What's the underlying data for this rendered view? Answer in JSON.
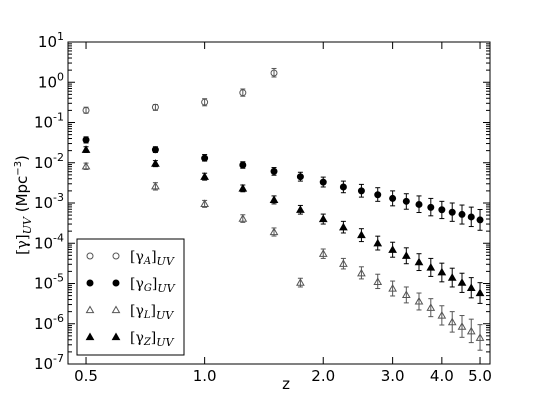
{
  "chart_data": {
    "type": "scatter",
    "xlabel": "z",
    "ylabel": "[γ]UV (Mpc⁻³)",
    "xscale": "log",
    "yscale": "log",
    "xlim": [
      0.45,
      5.3
    ],
    "ylim": [
      1e-07,
      10
    ],
    "x_ticks": [
      {
        "value": 0.5,
        "label": "0.5"
      },
      {
        "value": 1.0,
        "label": "1.0"
      },
      {
        "value": 2.0,
        "label": "2.0"
      },
      {
        "value": 3.0,
        "label": "3.0"
      },
      {
        "value": 4.0,
        "label": "4.0"
      },
      {
        "value": 5.0,
        "label": "5.0"
      }
    ],
    "y_ticks": [
      {
        "value": 1e-07,
        "base": "10",
        "exp": "-7"
      },
      {
        "value": 1e-06,
        "base": "10",
        "exp": "-6"
      },
      {
        "value": 1e-05,
        "base": "10",
        "exp": "-5"
      },
      {
        "value": 0.0001,
        "base": "10",
        "exp": "-4"
      },
      {
        "value": 0.001,
        "base": "10",
        "exp": "-3"
      },
      {
        "value": 0.01,
        "base": "10",
        "exp": "-2"
      },
      {
        "value": 0.1,
        "base": "10",
        "exp": "-1"
      },
      {
        "value": 1,
        "base": "10",
        "exp": "0"
      },
      {
        "value": 10,
        "base": "10",
        "exp": "1"
      }
    ],
    "legend_position": "bottom-left",
    "series": [
      {
        "name": "[γA]UV",
        "name_main": "[γ",
        "name_sub_inner": "A",
        "name_sub_outer": "UV",
        "marker": "circle-open",
        "color": "#555555",
        "points": [
          {
            "x": 0.5,
            "y": 0.2,
            "lo": 0.17,
            "hi": 0.24
          },
          {
            "x": 0.75,
            "y": 0.24,
            "lo": 0.2,
            "hi": 0.28
          },
          {
            "x": 1.0,
            "y": 0.32,
            "lo": 0.26,
            "hi": 0.39
          },
          {
            "x": 1.25,
            "y": 0.55,
            "lo": 0.45,
            "hi": 0.68
          },
          {
            "x": 1.5,
            "y": 1.7,
            "lo": 1.35,
            "hi": 2.2
          }
        ]
      },
      {
        "name": "[γG]UV",
        "name_main": "[γ",
        "name_sub_inner": "G",
        "name_sub_outer": "UV",
        "marker": "circle-filled",
        "color": "#000000",
        "points": [
          {
            "x": 0.5,
            "y": 0.037,
            "lo": 0.031,
            "hi": 0.044
          },
          {
            "x": 0.75,
            "y": 0.021,
            "lo": 0.018,
            "hi": 0.025
          },
          {
            "x": 1.0,
            "y": 0.013,
            "lo": 0.011,
            "hi": 0.016
          },
          {
            "x": 1.25,
            "y": 0.0088,
            "lo": 0.0073,
            "hi": 0.0106
          },
          {
            "x": 1.5,
            "y": 0.0061,
            "lo": 0.0049,
            "hi": 0.0076
          },
          {
            "x": 1.75,
            "y": 0.0045,
            "lo": 0.0035,
            "hi": 0.0058
          },
          {
            "x": 2.0,
            "y": 0.0033,
            "lo": 0.0025,
            "hi": 0.0044
          },
          {
            "x": 2.25,
            "y": 0.0025,
            "lo": 0.0018,
            "hi": 0.0035
          },
          {
            "x": 2.5,
            "y": 0.002,
            "lo": 0.0014,
            "hi": 0.0029
          },
          {
            "x": 2.75,
            "y": 0.0016,
            "lo": 0.0011,
            "hi": 0.0024
          },
          {
            "x": 3.0,
            "y": 0.0013,
            "lo": 0.00085,
            "hi": 0.002
          },
          {
            "x": 3.25,
            "y": 0.0011,
            "lo": 0.0007,
            "hi": 0.0017
          },
          {
            "x": 3.5,
            "y": 0.00092,
            "lo": 0.00058,
            "hi": 0.0015
          },
          {
            "x": 3.75,
            "y": 0.00078,
            "lo": 0.00048,
            "hi": 0.0013
          },
          {
            "x": 4.0,
            "y": 0.00068,
            "lo": 0.00041,
            "hi": 0.0011
          },
          {
            "x": 4.25,
            "y": 0.00059,
            "lo": 0.00035,
            "hi": 0.001
          },
          {
            "x": 4.5,
            "y": 0.00052,
            "lo": 0.0003,
            "hi": 0.00089
          },
          {
            "x": 4.75,
            "y": 0.00045,
            "lo": 0.00026,
            "hi": 0.00079
          },
          {
            "x": 5.0,
            "y": 0.00038,
            "lo": 0.00021,
            "hi": 0.00069
          }
        ]
      },
      {
        "name": "[γL]UV",
        "name_main": "[γ",
        "name_sub_inner": "L",
        "name_sub_outer": "UV",
        "marker": "triangle-open",
        "color": "#555555",
        "points": [
          {
            "x": 0.5,
            "y": 0.0082,
            "lo": 0.0068,
            "hi": 0.0098
          },
          {
            "x": 0.75,
            "y": 0.0026,
            "lo": 0.0021,
            "hi": 0.0032
          },
          {
            "x": 1.0,
            "y": 0.00095,
            "lo": 0.00078,
            "hi": 0.00116
          },
          {
            "x": 1.25,
            "y": 0.00041,
            "lo": 0.00033,
            "hi": 0.00051
          },
          {
            "x": 1.5,
            "y": 0.00019,
            "lo": 0.000151,
            "hi": 0.00024
          },
          {
            "x": 1.75,
            "y": 1.05e-05,
            "lo": 8.2e-06,
            "hi": 1.35e-05
          },
          {
            "x": 2.0,
            "y": 5.5e-05,
            "lo": 4.2e-05,
            "hi": 7.2e-05
          },
          {
            "x": 2.25,
            "y": 3.1e-05,
            "lo": 2.3e-05,
            "hi": 4.2e-05
          },
          {
            "x": 2.5,
            "y": 1.8e-05,
            "lo": 1.3e-05,
            "hi": 2.6e-05
          },
          {
            "x": 2.75,
            "y": 1.1e-05,
            "lo": 7.5e-06,
            "hi": 1.7e-05
          },
          {
            "x": 3.0,
            "y": 7.5e-06,
            "lo": 4.9e-06,
            "hi": 1.15e-05
          },
          {
            "x": 3.25,
            "y": 5.2e-06,
            "lo": 3.3e-06,
            "hi": 8.2e-06
          },
          {
            "x": 3.5,
            "y": 3.6e-06,
            "lo": 2.2e-06,
            "hi": 5.8e-06
          },
          {
            "x": 3.75,
            "y": 2.5e-06,
            "lo": 1.5e-06,
            "hi": 4.2e-06
          },
          {
            "x": 4.0,
            "y": 1.6e-06,
            "lo": 9.3e-07,
            "hi": 2.8e-06
          },
          {
            "x": 4.25,
            "y": 1.1e-06,
            "lo": 6.2e-07,
            "hi": 2e-06
          },
          {
            "x": 4.5,
            "y": 8.5e-07,
            "lo": 4.6e-07,
            "hi": 1.6e-06
          },
          {
            "x": 4.75,
            "y": 6.5e-07,
            "lo": 3.4e-07,
            "hi": 1.3e-06
          },
          {
            "x": 5.0,
            "y": 4.5e-07,
            "lo": 2.2e-07,
            "hi": 9.5e-07
          }
        ]
      },
      {
        "name": "[γZ]UV",
        "name_main": "[γ",
        "name_sub_inner": "Z",
        "name_sub_outer": "UV",
        "marker": "triangle-filled",
        "color": "#000000",
        "points": [
          {
            "x": 0.5,
            "y": 0.021,
            "lo": 0.018,
            "hi": 0.025
          },
          {
            "x": 0.75,
            "y": 0.0095,
            "lo": 0.008,
            "hi": 0.0113
          },
          {
            "x": 1.0,
            "y": 0.0045,
            "lo": 0.0037,
            "hi": 0.0055
          },
          {
            "x": 1.25,
            "y": 0.0023,
            "lo": 0.0019,
            "hi": 0.0028
          },
          {
            "x": 1.5,
            "y": 0.0012,
            "lo": 0.00095,
            "hi": 0.0015
          },
          {
            "x": 1.75,
            "y": 0.00068,
            "lo": 0.00053,
            "hi": 0.00087
          },
          {
            "x": 2.0,
            "y": 0.0004,
            "lo": 0.0003,
            "hi": 0.00053
          },
          {
            "x": 2.25,
            "y": 0.00025,
            "lo": 0.00018,
            "hi": 0.00035
          },
          {
            "x": 2.5,
            "y": 0.00016,
            "lo": 0.00011,
            "hi": 0.00023
          },
          {
            "x": 2.75,
            "y": 0.0001,
            "lo": 6.8e-05,
            "hi": 0.00015
          },
          {
            "x": 3.0,
            "y": 6.9e-05,
            "lo": 4.5e-05,
            "hi": 0.000106
          },
          {
            "x": 3.25,
            "y": 4.9e-05,
            "lo": 3.1e-05,
            "hi": 7.7e-05
          },
          {
            "x": 3.5,
            "y": 3.4e-05,
            "lo": 2.1e-05,
            "hi": 5.5e-05
          },
          {
            "x": 3.75,
            "y": 2.5e-05,
            "lo": 1.5e-05,
            "hi": 4.2e-05
          },
          {
            "x": 4.0,
            "y": 1.9e-05,
            "lo": 1.1e-05,
            "hi": 3.2e-05
          },
          {
            "x": 4.25,
            "y": 1.4e-05,
            "lo": 8.2e-06,
            "hi": 2.4e-05
          },
          {
            "x": 4.5,
            "y": 1.05e-05,
            "lo": 6e-06,
            "hi": 1.8e-05
          },
          {
            "x": 4.75,
            "y": 7.8e-06,
            "lo": 4.4e-06,
            "hi": 1.4e-05
          },
          {
            "x": 5.0,
            "y": 5.8e-06,
            "lo": 3.2e-06,
            "hi": 1.05e-05
          }
        ]
      }
    ]
  }
}
